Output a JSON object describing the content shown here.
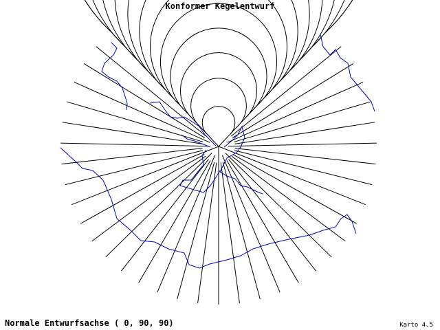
{
  "title": "Konformer Kegelentwurf",
  "footer": {
    "projection": "Normale Entwurfsachse ( 0, 90, 90)",
    "software": "Karto 4.5"
  }
}
